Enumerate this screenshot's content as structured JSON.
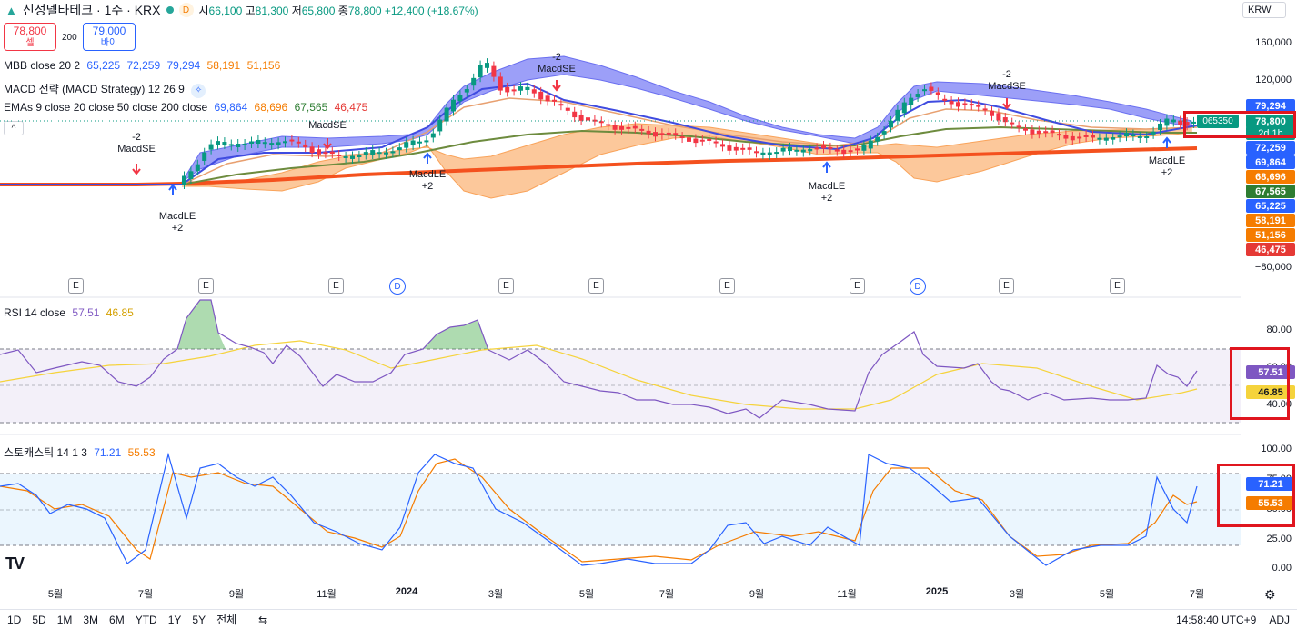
{
  "header": {
    "symbol": "신성델타테크 · 1주 · KRX",
    "d_badge": "D",
    "open_label": "시",
    "open": "66,100",
    "high_label": "고",
    "high": "81,300",
    "low_label": "저",
    "low": "65,800",
    "close_label": "종",
    "close": "78,800",
    "change": "+12,400 (+18.67%)",
    "currency": "KRW"
  },
  "trade": {
    "sell_price": "78,800",
    "sell_label": "셀",
    "spread": "200",
    "buy_price": "79,000",
    "buy_label": "바이"
  },
  "legends": {
    "mbb_name": "MBB close 20 2",
    "mbb_values": [
      "65,225",
      "72,259",
      "79,294",
      "58,191",
      "51,156"
    ],
    "macd_name": "MACD 전략 (MACD Strategy) 12 26 9",
    "emas_name": "EMAs 9 close 20 close 50 close 200 close",
    "emas_values": [
      "69,864",
      "68,696",
      "67,565",
      "46,475"
    ],
    "rsi_name": "RSI 14 close",
    "rsi_values": [
      "57.51",
      "46.85"
    ],
    "stoch_name": "스토캐스틱 14 1 3",
    "stoch_values": [
      "71.21",
      "55.53"
    ]
  },
  "price_axis": {
    "ticks": [
      "160,000",
      "120,000",
      "−80,000"
    ],
    "pills": [
      {
        "text": "79,294",
        "color": "#2962ff"
      },
      {
        "text": "78,800",
        "color": "#089981"
      },
      {
        "text": "2d 1h",
        "color": "#089981"
      },
      {
        "text": "72,259",
        "color": "#2962ff"
      },
      {
        "text": "69,864",
        "color": "#2962ff"
      },
      {
        "text": "68,696",
        "color": "#f57c00"
      },
      {
        "text": "67,565",
        "color": "#2e7d32"
      },
      {
        "text": "65,225",
        "color": "#2962ff"
      },
      {
        "text": "58,191",
        "color": "#f57c00"
      },
      {
        "text": "51,156",
        "color": "#f57c00"
      },
      {
        "text": "46,475",
        "color": "#e53935"
      }
    ],
    "countdown_code": "065350"
  },
  "rsi_axis": {
    "ticks": [
      "80.00",
      "60.00",
      "40.00"
    ],
    "pills": [
      {
        "text": "57.51",
        "color": "#7e57c2"
      },
      {
        "text": "46.85",
        "color": "#f5d33c"
      }
    ]
  },
  "stoch_axis": {
    "ticks": [
      "100.00",
      "75.00",
      "50.00",
      "25.00",
      "0.00"
    ],
    "pills": [
      {
        "text": "71.21",
        "color": "#2962ff"
      },
      {
        "text": "55.53",
        "color": "#f57c00"
      }
    ]
  },
  "signals": {
    "se1": {
      "qty": "-2",
      "name": "MacdSE"
    },
    "le1": {
      "name": "MacdLE",
      "qty": "+2"
    },
    "se2": {
      "name": "MacdSE"
    },
    "le2": {
      "name": "MacdLE",
      "qty": "+2"
    },
    "se3": {
      "qty": "-2",
      "name": "MacdSE"
    },
    "le3": {
      "name": "MacdLE",
      "qty": "+2"
    },
    "se4": {
      "qty": "-2",
      "name": "MacdSE"
    },
    "le4": {
      "name": "MacdLE",
      "qty": "+2"
    }
  },
  "events": {
    "e": "E",
    "d": "D"
  },
  "time_axis": [
    "5월",
    "7월",
    "9월",
    "11월",
    "2024",
    "3월",
    "5월",
    "7월",
    "9월",
    "11월",
    "2025",
    "3월",
    "5월",
    "7월"
  ],
  "timeframes": [
    "1D",
    "5D",
    "1M",
    "3M",
    "6M",
    "YTD",
    "1Y",
    "5Y",
    "전체"
  ],
  "status": {
    "clock": "14:58:40 UTC+9",
    "adj": "ADJ"
  }
}
